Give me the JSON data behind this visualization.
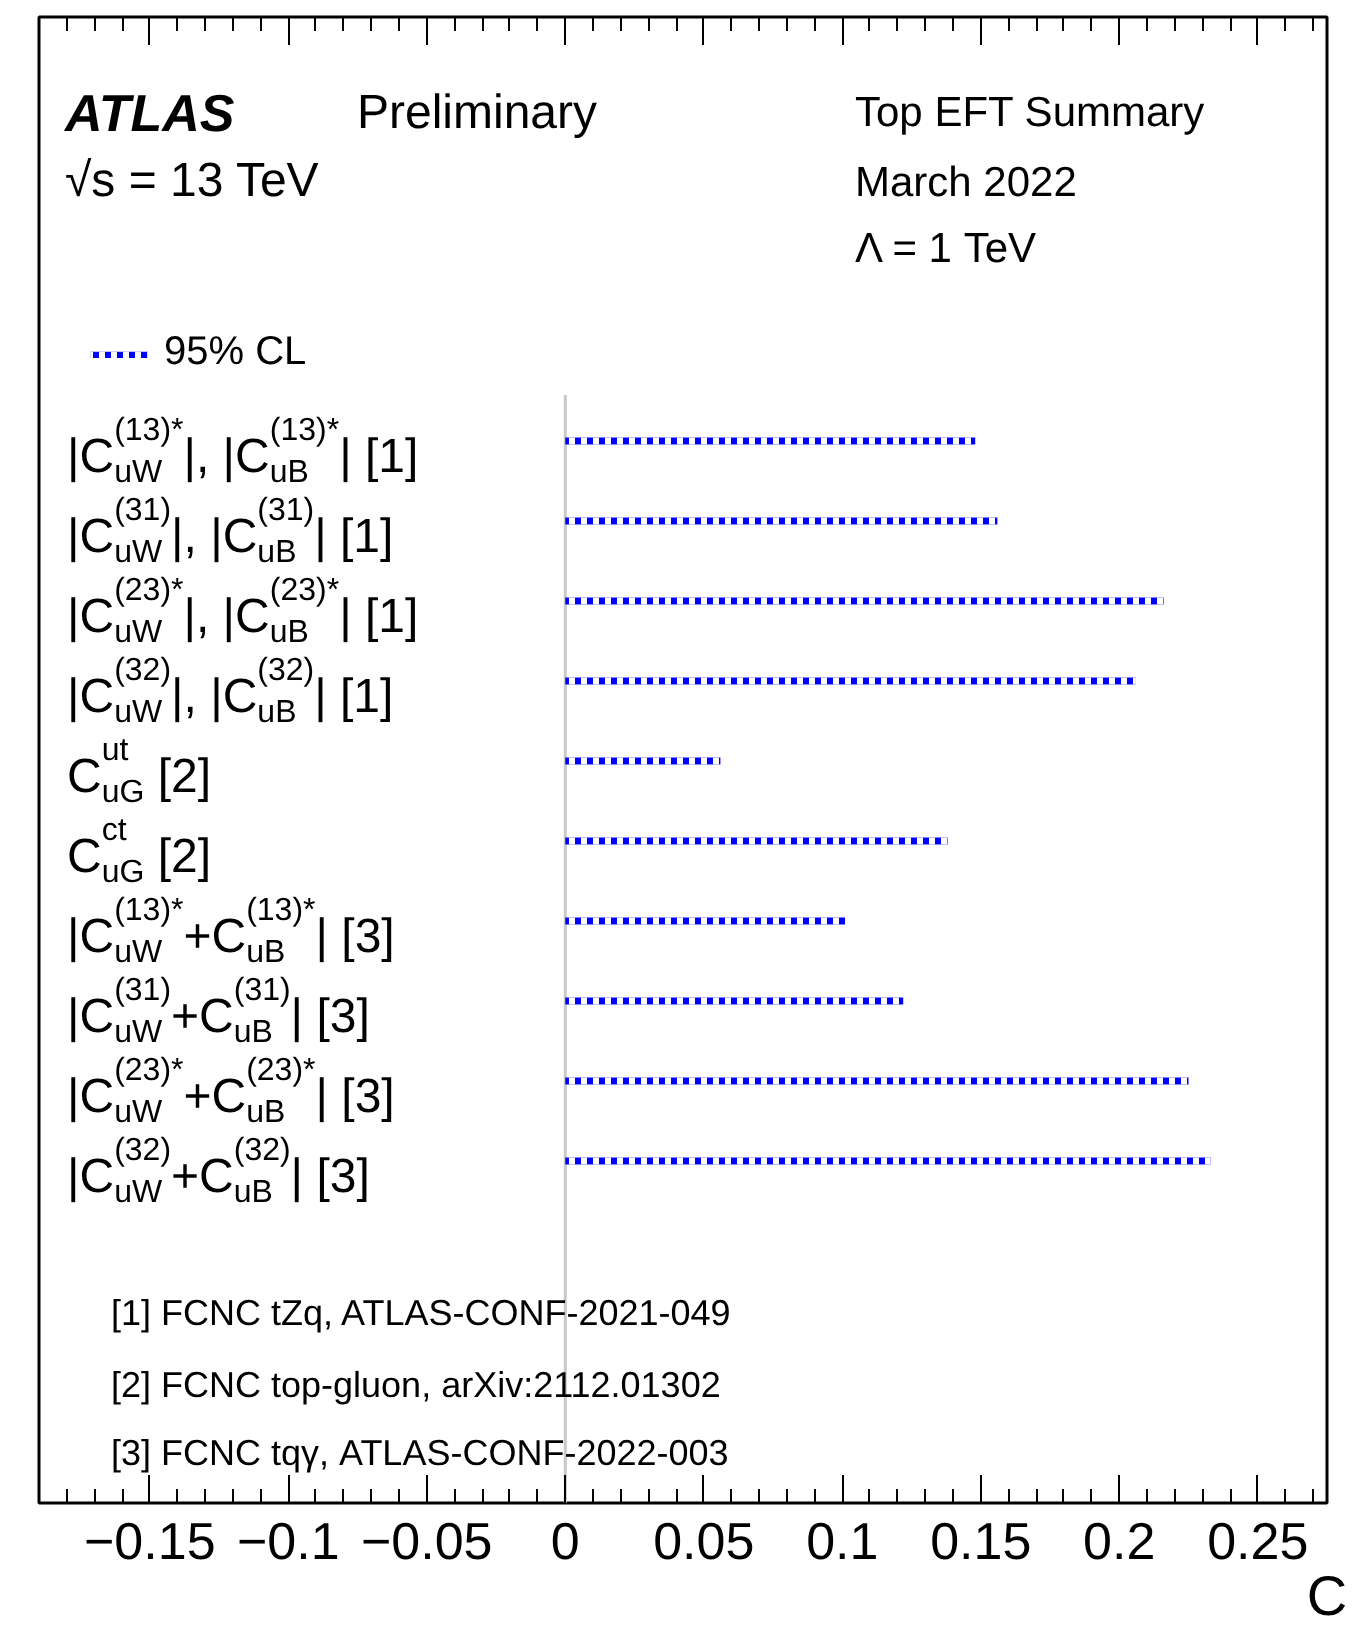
{
  "chart_data": {
    "type": "bar",
    "orientation": "horizontal",
    "title": "ATLAS",
    "categories": [
      "|C$_{uW}$$^{(13)*}$|, |C$_{uB}$$^{(13)*}$| [1]",
      "|C$_{uW}$$^{(31)}$|, |C$_{uB}$$^{(31)}$| [1]",
      "|C$_{uW}$$^{(23)*}$|, |C$_{uB}$$^{(23)*}$| [1]",
      "|C$_{uW}$$^{(32)}$|, |C$_{uB}$$^{(32)}$| [1]",
      "C$^{ut}$$_{uG}$ [2]",
      "C$^{ct}$$_{uG}$ [2]",
      "|C$_{uW}$$^{(13)*}$+C$_{uB}$$^{(13)*}$| [3]",
      "|C$_{uW}$$^{(31)}$+C$_{uB}$$^{(31)}$| [3]",
      "|C$_{uW}$$^{(23)*}$+C$_{uB}$$^{(23)*}$| [3]",
      "|C$_{uW}$$^{(32)}$+C$_{uB}$$^{(32)}$| [3]"
    ],
    "series": [
      {
        "name": "95% CL",
        "color": "#0000ff",
        "values": [
          0.148,
          0.156,
          0.216,
          0.206,
          0.056,
          0.138,
          0.101,
          0.122,
          0.225,
          0.233
        ]
      }
    ],
    "line_style": "dotted",
    "xlabel": "C",
    "xlim": [
      -0.19,
      0.275
    ],
    "xticks": [
      {
        "value": -0.15,
        "label": "−0.15"
      },
      {
        "value": -0.1,
        "label": "−0.1"
      },
      {
        "value": -0.05,
        "label": "−0.05"
      },
      0,
      0.05,
      0.1,
      0.15,
      0.2,
      0.25
    ],
    "ref_lines": [
      {
        "axis": "x",
        "value": 0,
        "color": "#c8c8c8"
      }
    ],
    "legend": "top left",
    "annotations": [
      "Preliminary",
      "√s = 13 TeV",
      "Top EFT Summary",
      "March 2022",
      "Λ = 1 TeV",
      "[1] FCNC tZq, ATLAS-CONF-2021-049",
      "[2] FCNC top-gluon, arXiv:2112.01302",
      "[3] FCNC tqγ, ATLAS-CONF-2022-003"
    ],
    "tick_labels": "x"
  }
}
